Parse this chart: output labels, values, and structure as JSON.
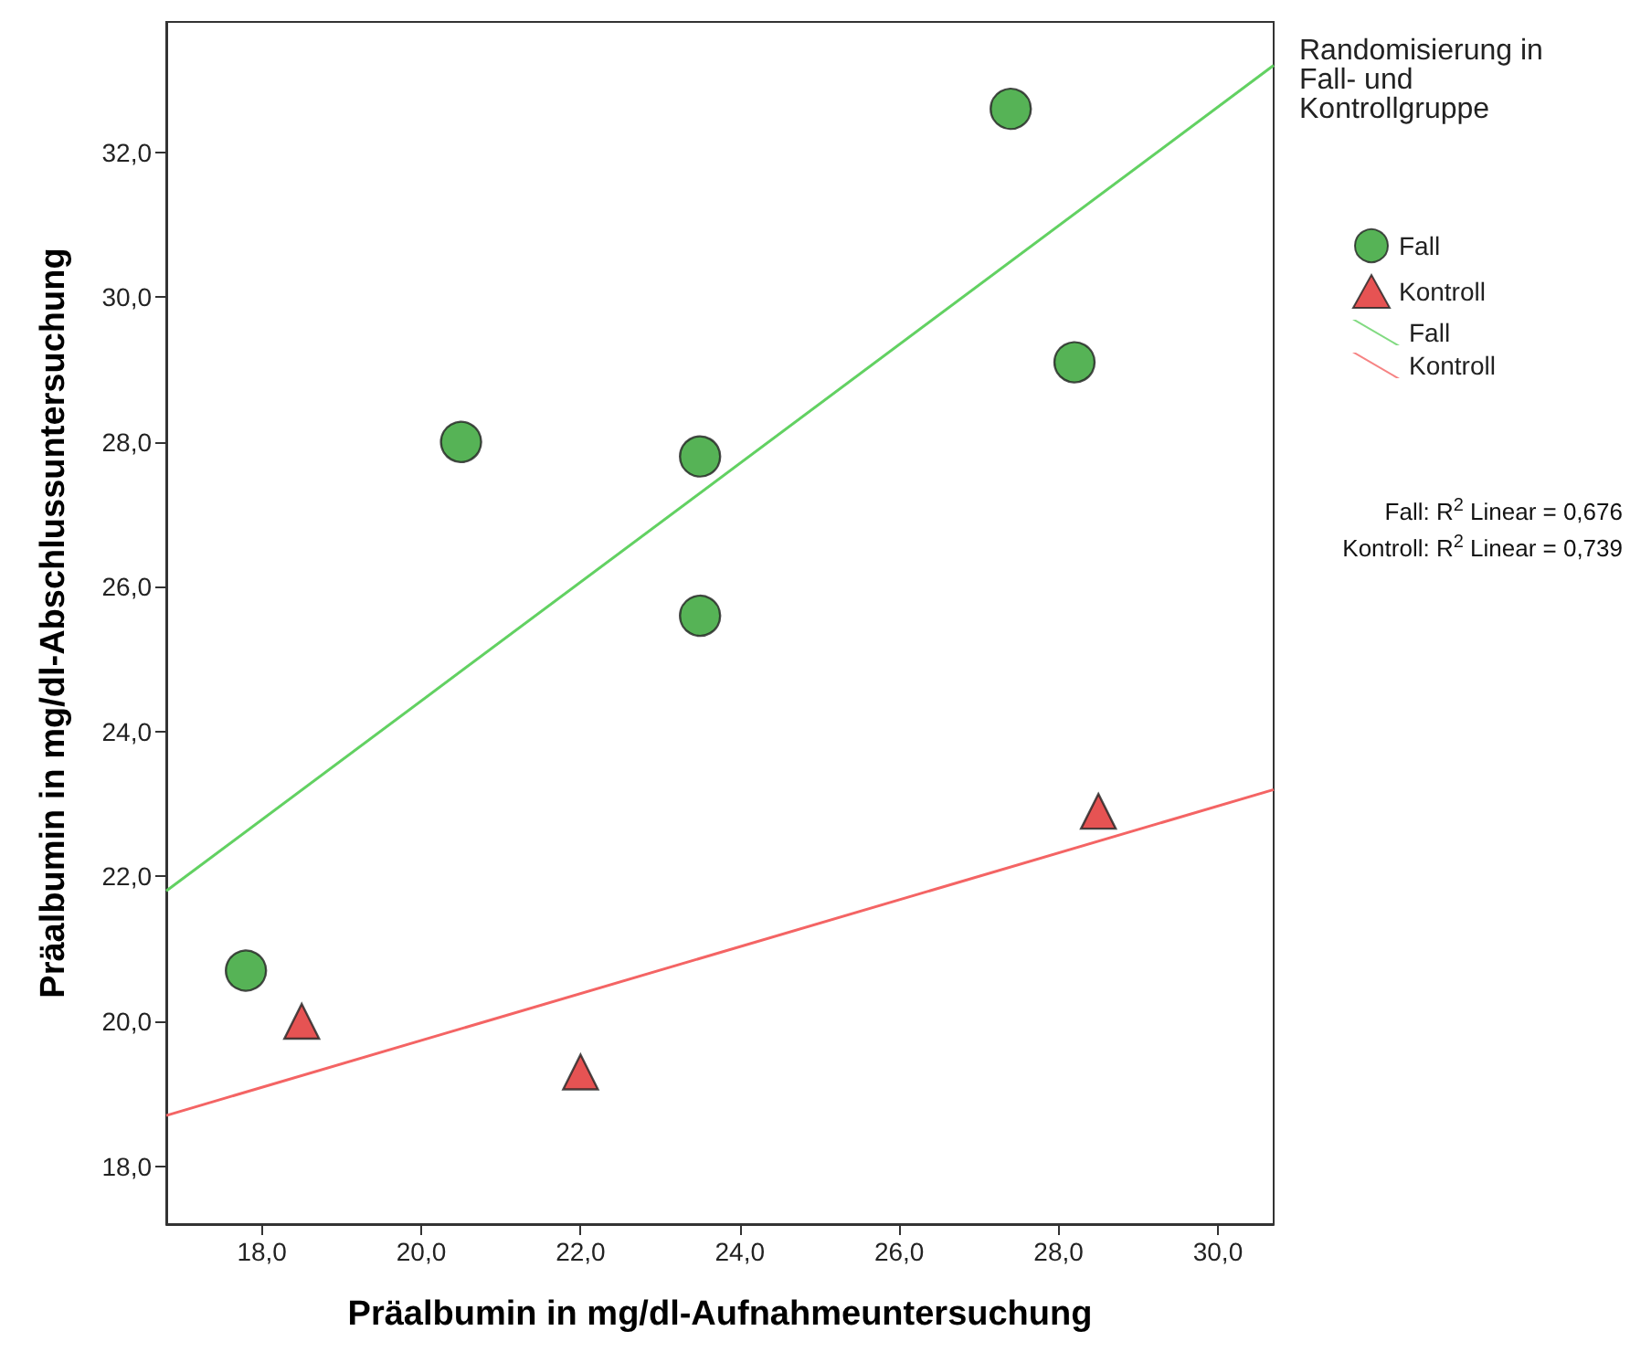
{
  "chart_data": {
    "type": "scatter",
    "xlabel": "Präalbumin in mg/dl-Aufnahmeuntersuchung",
    "ylabel": "Präalbumin in mg/dl-Abschlussuntersuchung",
    "legend_title": "Randomisierung in Fall- und Kontrollgruppe",
    "annotations": [
      "Fall: R$^{2}$ Linear = 0,676",
      "Kontroll: R$^{2}$ Linear = 0,739"
    ],
    "series": [
      {
        "name": "Fall",
        "type": "scatter",
        "marker": "circle",
        "color": "#2ca02c",
        "x": [
          17.8,
          20.5,
          23.5,
          23.5,
          27.4,
          28.2
        ],
        "values": [
          20.7,
          28.0,
          27.8,
          25.6,
          32.6,
          29.1
        ]
      },
      {
        "name": "Kontroll",
        "type": "scatter",
        "marker": "triangle",
        "color": "#e02828",
        "x": [
          18.5,
          22.0,
          28.5
        ],
        "values": [
          20.0,
          19.3,
          22.9
        ]
      },
      {
        "name": "Fall",
        "type": "line",
        "marker": "none",
        "color": "#62d162",
        "x": [
          16.8,
          30.7
        ],
        "values": [
          21.8,
          33.2
        ]
      },
      {
        "name": "Kontroll",
        "type": "line",
        "marker": "none",
        "color": "#f46464",
        "x": [
          16.8,
          30.7
        ],
        "values": [
          18.7,
          23.2
        ]
      }
    ],
    "xlim": [
      16.8,
      30.7
    ],
    "ylim": [
      17.2,
      33.8
    ],
    "xticks": [
      {
        "value": 18,
        "label": "18,0"
      },
      {
        "value": 20,
        "label": "20,0"
      },
      {
        "value": 22,
        "label": "22,0"
      },
      {
        "value": 24,
        "label": "24,0"
      },
      {
        "value": 26,
        "label": "26,0"
      },
      {
        "value": 28,
        "label": "28,0"
      },
      {
        "value": 30,
        "label": "30,0"
      }
    ],
    "yticks": [
      {
        "value": 18,
        "label": "18,0"
      },
      {
        "value": 20,
        "label": "20,0"
      },
      {
        "value": 22,
        "label": "22,0"
      },
      {
        "value": 24,
        "label": "24,0"
      },
      {
        "value": 26,
        "label": "26,0"
      },
      {
        "value": 28,
        "label": "28,0"
      },
      {
        "value": 30,
        "label": "30,0"
      },
      {
        "value": 32,
        "label": "32,0"
      }
    ],
    "grid": false,
    "legend": "right"
  }
}
